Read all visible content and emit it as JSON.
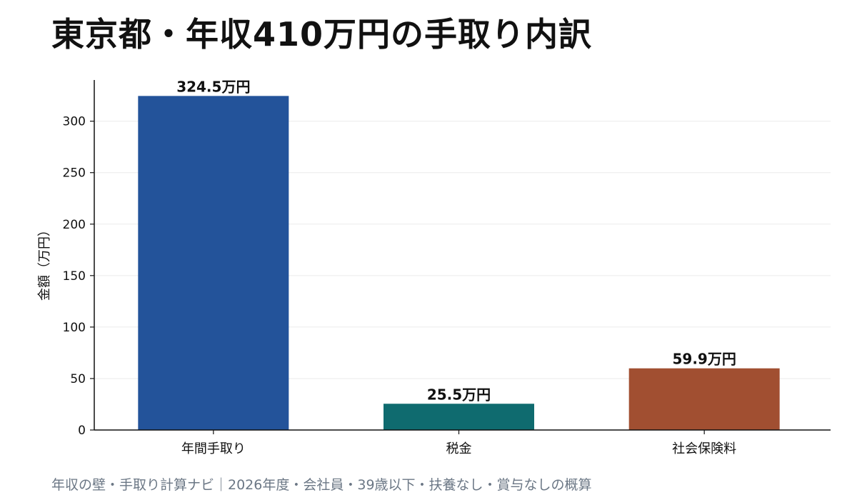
{
  "title": "東京都・年収410万円の手取り内訳",
  "footer": "年収の壁・手取り計算ナビ｜2026年度・会社員・39歳以下・扶養なし・賞与なしの概算",
  "chart_data": {
    "type": "bar",
    "title": "東京都・年収410万円の手取り内訳",
    "ylabel": "金額（万円）",
    "xlabel": "",
    "categories": [
      "年間手取り",
      "税金",
      "社会保険料"
    ],
    "values": [
      324.5,
      25.5,
      59.9
    ],
    "data_labels": [
      "324.5万円",
      "25.5万円",
      "59.9万円"
    ],
    "colors": [
      "#23539a",
      "#0f6b6f",
      "#a14f31"
    ],
    "ylim": [
      0,
      340
    ],
    "yticks": [
      0,
      50,
      100,
      150,
      200,
      250,
      300
    ],
    "grid": true,
    "legend": "none"
  }
}
